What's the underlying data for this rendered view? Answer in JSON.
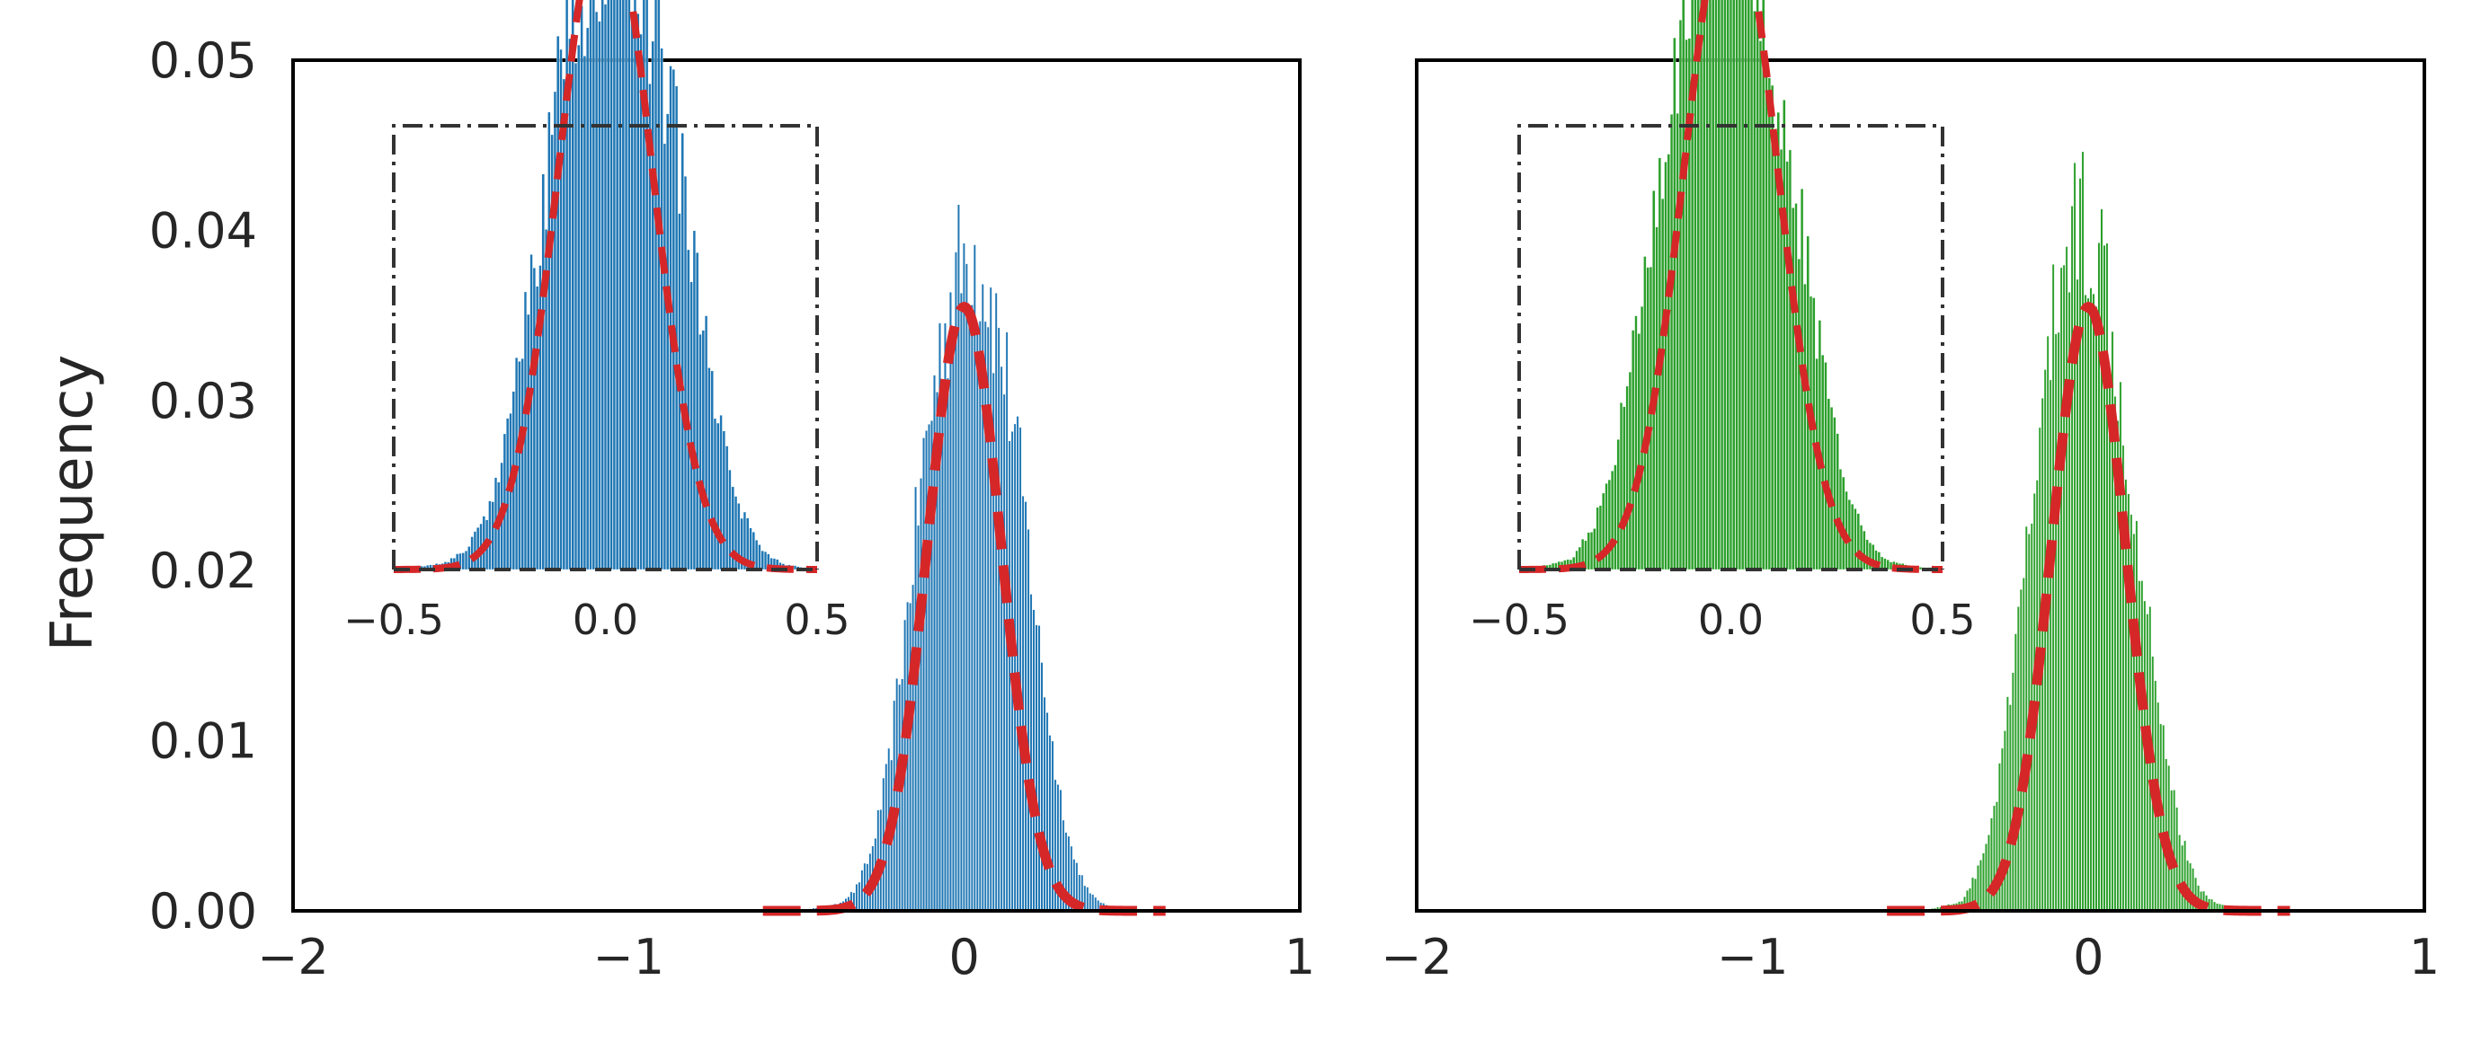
{
  "figure": {
    "ylabel": "Frequency",
    "colors": {
      "left_hist": "#1f77b4",
      "right_hist": "#2ca02c",
      "fit_curve": "#d62728",
      "axes": "#000000",
      "inset_frame": "#333333"
    }
  },
  "chart_data": [
    {
      "type": "histogram",
      "panel": "left",
      "xlabel": "",
      "ylabel": "Frequency",
      "xlim": [
        -2,
        1
      ],
      "ylim": [
        0,
        0.05
      ],
      "x_ticks": [
        "−2",
        "−1",
        "0",
        "1"
      ],
      "y_ticks": [
        "0.00",
        "0.01",
        "0.02",
        "0.03",
        "0.04",
        "0.05"
      ],
      "grid": false,
      "bar_color": "#1f77b4",
      "histogram": {
        "bin_edges": [
          -0.5,
          -0.45,
          -0.4,
          -0.35,
          -0.3,
          -0.25,
          -0.2,
          -0.15,
          -0.1,
          -0.05,
          0.0,
          0.05,
          0.1,
          0.15,
          0.2,
          0.25,
          0.3,
          0.35,
          0.4,
          0.45,
          0.5
        ],
        "frequencies": [
          0.0001,
          0.0002,
          0.0004,
          0.0012,
          0.0035,
          0.0085,
          0.0165,
          0.0258,
          0.0325,
          0.0372,
          0.039,
          0.0365,
          0.0315,
          0.0245,
          0.0155,
          0.008,
          0.0032,
          0.001,
          0.0003,
          0.0001
        ]
      },
      "fit": {
        "type": "gaussian",
        "mean": 0.0,
        "std": 0.11,
        "peak": 0.0355,
        "color": "#d62728",
        "style": "dashed",
        "x_range": [
          -0.6,
          0.6
        ]
      },
      "inset": {
        "xlim": [
          -0.5,
          0.5
        ],
        "x_ticks": [
          "−0.5",
          "0.0",
          "0.5"
        ],
        "frame": "dash-dot"
      }
    },
    {
      "type": "histogram",
      "panel": "right",
      "xlabel": "",
      "ylabel": "",
      "xlim": [
        -2,
        1
      ],
      "ylim": [
        0,
        0.05
      ],
      "x_ticks": [
        "−2",
        "−1",
        "0",
        "1"
      ],
      "y_ticks": [],
      "grid": false,
      "bar_color": "#2ca02c",
      "histogram": {
        "bin_edges": [
          -0.5,
          -0.45,
          -0.4,
          -0.35,
          -0.3,
          -0.25,
          -0.2,
          -0.15,
          -0.1,
          -0.05,
          0.0,
          0.05,
          0.1,
          0.15,
          0.2,
          0.25,
          0.3,
          0.35,
          0.4,
          0.45,
          0.5
        ],
        "frequencies": [
          0.0001,
          0.0003,
          0.0006,
          0.0025,
          0.0065,
          0.0135,
          0.0225,
          0.031,
          0.0385,
          0.041,
          0.0395,
          0.0345,
          0.0255,
          0.0185,
          0.0105,
          0.0045,
          0.0015,
          0.0005,
          0.0002,
          0.0001
        ]
      },
      "fit": {
        "type": "gaussian",
        "mean": 0.0,
        "std": 0.11,
        "peak": 0.0355,
        "color": "#d62728",
        "style": "dashed",
        "x_range": [
          -0.6,
          0.6
        ]
      },
      "inset": {
        "xlim": [
          -0.5,
          0.5
        ],
        "x_ticks": [
          "−0.5",
          "0.0",
          "0.5"
        ],
        "frame": "dash-dot"
      }
    }
  ]
}
